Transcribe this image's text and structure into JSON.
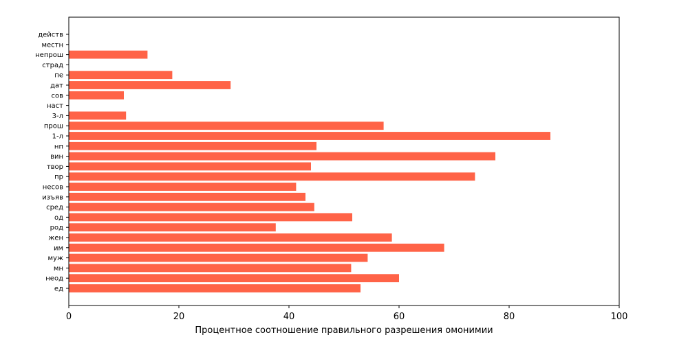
{
  "chart_data": {
    "type": "bar",
    "orientation": "horizontal",
    "title": "",
    "xlabel": "Процентное соотношение правильного разрешения омонимии",
    "ylabel": "",
    "xlim": [
      0,
      100
    ],
    "xticks": [
      0,
      20,
      40,
      60,
      80,
      100
    ],
    "grid": false,
    "legend": "none",
    "bar_color": "#ff6347",
    "categories": [
      "ед",
      "неод",
      "мн",
      "муж",
      "им",
      "жен",
      "род",
      "од",
      "сред",
      "изъяв",
      "несов",
      "пр",
      "твор",
      "вин",
      "нп",
      "1-л",
      "прош",
      "3-л",
      "наст",
      "сов",
      "дат",
      "пе",
      "страд",
      "непрош",
      "местн",
      "действ"
    ],
    "values": [
      53.0,
      60.0,
      51.3,
      54.3,
      68.2,
      58.7,
      37.6,
      51.5,
      44.6,
      43.0,
      41.3,
      73.8,
      44.0,
      77.5,
      45.0,
      87.5,
      57.2,
      10.4,
      0,
      10.0,
      29.4,
      18.8,
      0,
      14.3,
      0,
      0
    ]
  }
}
